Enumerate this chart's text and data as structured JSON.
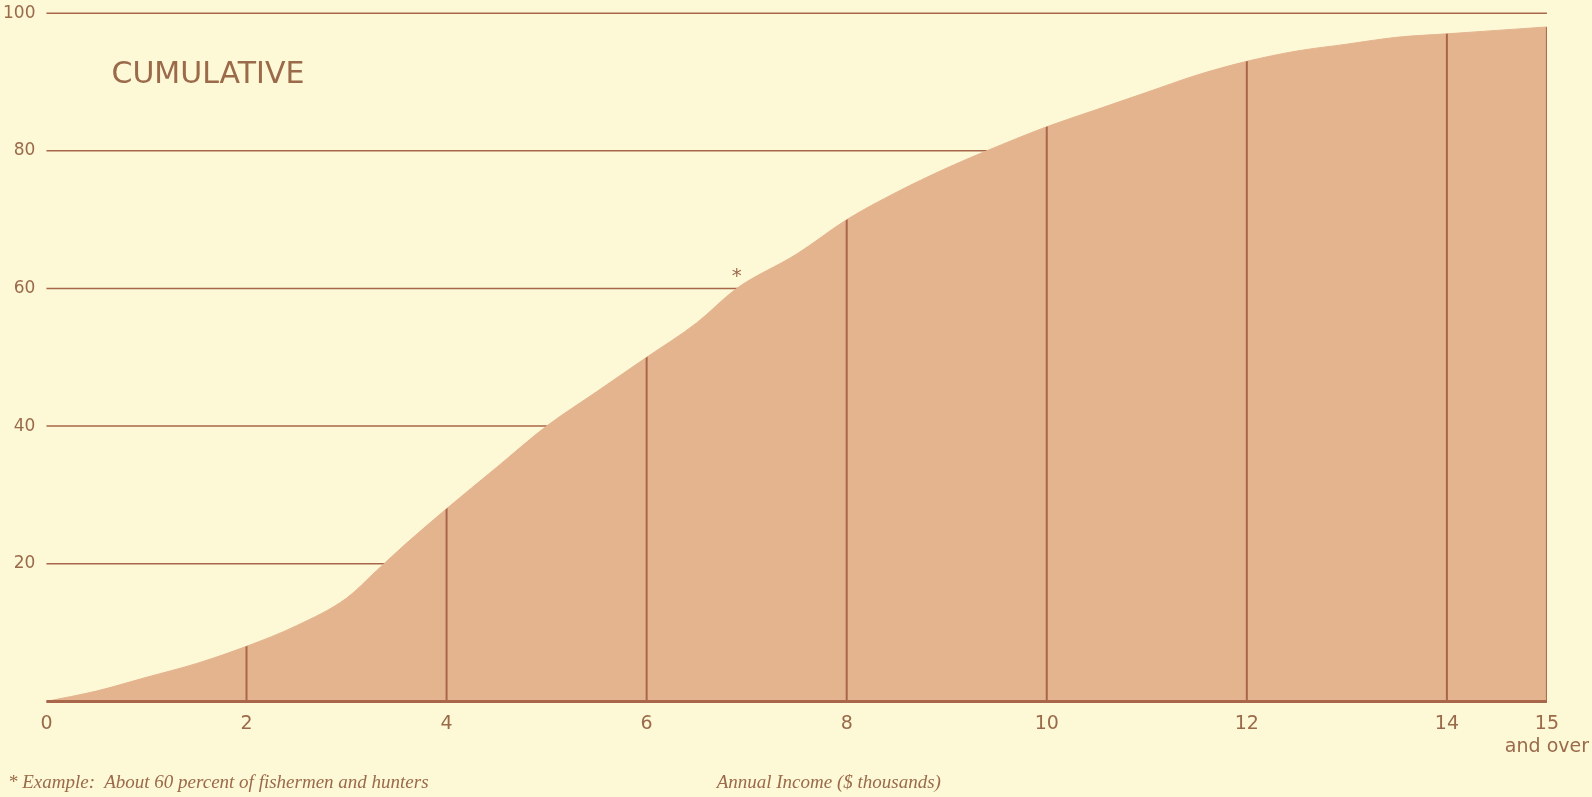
{
  "chart_data": {
    "type": "area",
    "title": "CUMULATIVE",
    "xlabel": "Annual Income ($ thousands)",
    "x": [
      0,
      0.5,
      1,
      1.5,
      2,
      2.5,
      3,
      3.3,
      3.6,
      4,
      4.5,
      5,
      5.5,
      6,
      6.5,
      6.9,
      7.5,
      8,
      8.5,
      9,
      9.4,
      10,
      10.5,
      11,
      11.5,
      12,
      12.5,
      13,
      13.5,
      14,
      14.5,
      15
    ],
    "series": [
      {
        "color": "#e4b48f",
        "values": [
          0,
          1.5,
          3.5,
          5.5,
          8,
          11,
          15,
          19,
          23,
          28,
          34,
          40,
          45,
          50,
          55,
          60,
          65,
          70,
          74,
          77.5,
          80,
          83.5,
          86,
          88.5,
          91,
          93,
          94.5,
          95.5,
          96.5,
          97,
          97.5,
          98
        ]
      }
    ],
    "xlim": [
      0,
      15
    ],
    "xticks": [
      0,
      2,
      4,
      6,
      8,
      10,
      12,
      14,
      {
        "value": 15,
        "label": "15\nand over"
      }
    ],
    "ylim": [
      0,
      100
    ],
    "yticks": [
      {
        "value": 0,
        "label": null
      },
      20,
      40,
      60,
      80,
      100
    ],
    "grid": true,
    "legend": false,
    "marker": "none",
    "line_style": "solid",
    "annotations": [
      {
        "text": "*",
        "x": 6.9,
        "y": 60
      },
      "* Example:  About 60 percent of fishermen and hunters"
    ]
  }
}
